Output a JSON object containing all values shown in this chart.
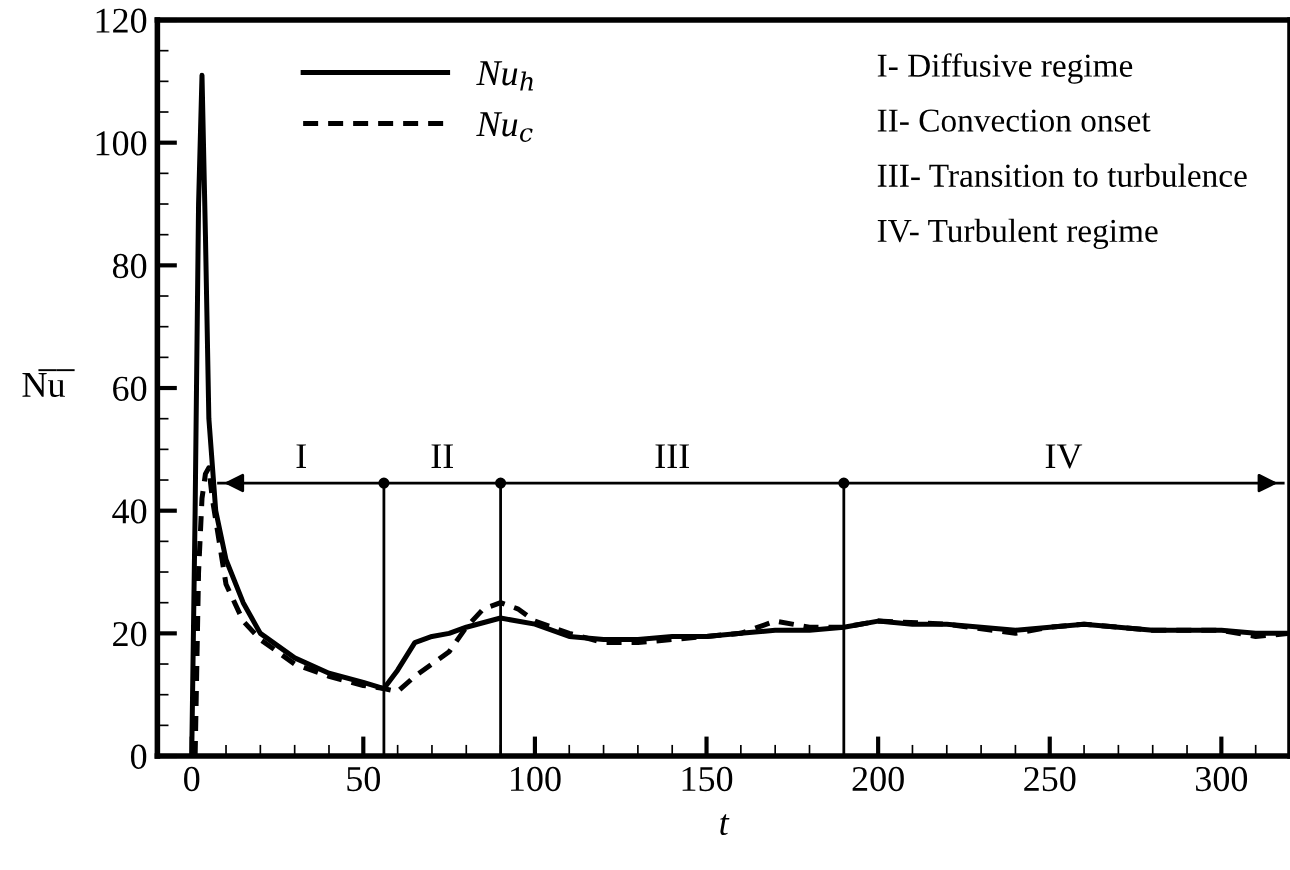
{
  "chart_data": {
    "type": "line",
    "xlabel": "t",
    "ylabel": "N̅u̅",
    "xlim": [
      -10,
      320
    ],
    "ylim": [
      0,
      120
    ],
    "xticks": [
      0,
      50,
      100,
      150,
      200,
      250,
      300
    ],
    "yticks": [
      0,
      20,
      40,
      60,
      80,
      100,
      120
    ],
    "grid": false,
    "legend": "top left",
    "series": [
      {
        "name": "Nu$_{h}$",
        "color": "#000000",
        "line_style": "solid",
        "x": [
          0,
          1,
          2,
          3,
          4,
          5,
          7,
          10,
          15,
          20,
          30,
          40,
          50,
          56,
          60,
          65,
          70,
          75,
          80,
          90,
          100,
          110,
          120,
          130,
          140,
          150,
          160,
          170,
          180,
          190,
          200,
          210,
          220,
          230,
          240,
          250,
          260,
          270,
          280,
          290,
          300,
          310,
          320
        ],
        "values": [
          0,
          40,
          90,
          111,
          85,
          55,
          40,
          32,
          25,
          20,
          16,
          13.5,
          12,
          11,
          14,
          18.5,
          19.5,
          20,
          21,
          22.5,
          21.5,
          19.5,
          19,
          19,
          19.5,
          19.5,
          20,
          20.5,
          20.5,
          21,
          22,
          21.5,
          21.5,
          21,
          20.5,
          21,
          21.5,
          21,
          20.5,
          20.5,
          20.5,
          20,
          20
        ]
      },
      {
        "name": "Nu$_{c}$",
        "color": "#000000",
        "line_style": "dashed",
        "x": [
          1,
          2,
          3,
          4,
          5,
          6,
          8,
          10,
          15,
          20,
          30,
          40,
          50,
          56,
          60,
          65,
          70,
          75,
          80,
          85,
          90,
          95,
          100,
          110,
          120,
          130,
          140,
          150,
          160,
          170,
          180,
          190,
          200,
          220,
          240,
          250,
          260,
          280,
          300,
          310,
          320
        ],
        "values": [
          0,
          30,
          42,
          46,
          47,
          42,
          35,
          28,
          22,
          19,
          15,
          13,
          11.5,
          11,
          10.5,
          13,
          15,
          17,
          21,
          24,
          25,
          24,
          22,
          20,
          18.5,
          18.5,
          19,
          19.5,
          20,
          22,
          21,
          21,
          22,
          21.5,
          20,
          21,
          21.5,
          20.5,
          20.5,
          19.5,
          20
        ]
      }
    ],
    "ref_lines": [
      {
        "axis": "y",
        "value": 44.5
      },
      {
        "axis": "x",
        "value": 56
      },
      {
        "axis": "x",
        "value": 90
      },
      {
        "axis": "x",
        "value": 190
      }
    ],
    "annotations": [
      "I",
      "II",
      "III",
      "IV",
      "I- Diffusive regime",
      "II- Convection onset",
      "III- Transition to turbulence",
      "IV- Turbulent regime"
    ]
  }
}
